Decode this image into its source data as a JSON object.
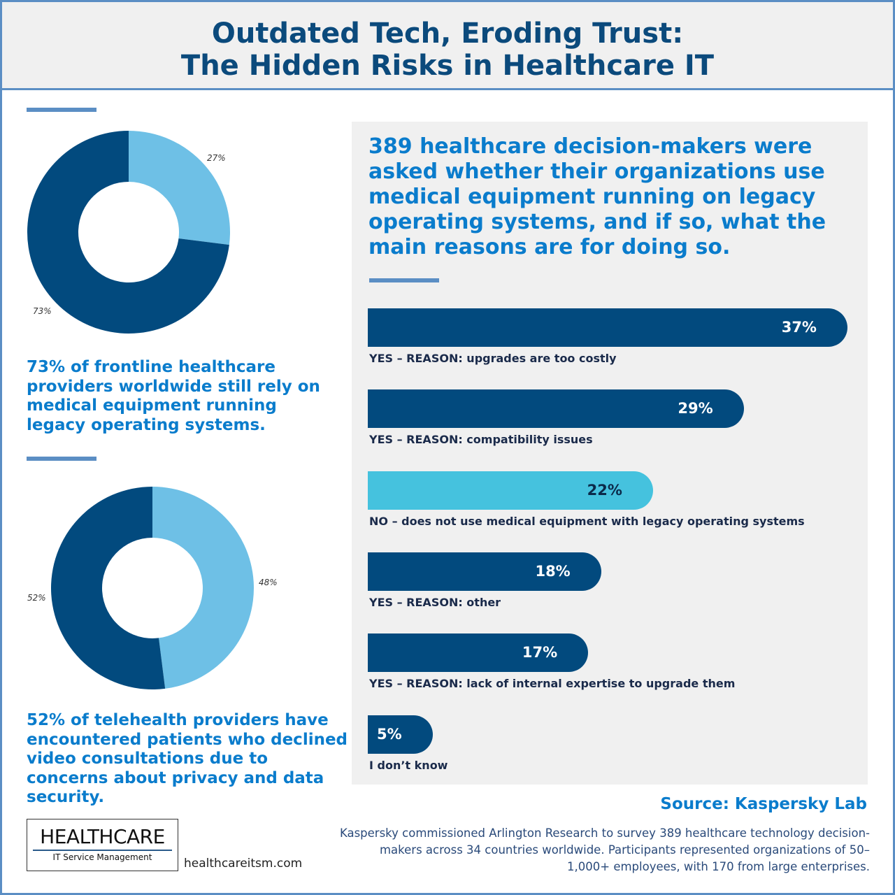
{
  "header": {
    "title_line1": "Outdated Tech, Eroding Trust:",
    "title_line2": "The Hidden Risks in Healthcare IT"
  },
  "colors": {
    "dark": "#024a7e",
    "light": "#6ec0e6",
    "cyan": "#45c2de",
    "accent": "#0a7ccc"
  },
  "chart_data": [
    {
      "type": "pie",
      "donut": true,
      "values": [
        27,
        73
      ],
      "labels": [
        "27%",
        "73%"
      ],
      "colors": [
        "#6ec0e6",
        "#024a7e"
      ]
    },
    {
      "type": "pie",
      "donut": true,
      "values": [
        48,
        52
      ],
      "labels": [
        "48%",
        "52%"
      ],
      "colors": [
        "#6ec0e6",
        "#024a7e"
      ]
    },
    {
      "type": "bar",
      "orientation": "horizontal",
      "title": "389 healthcare decision-makers were asked whether their organizations use medical equipment running on legacy operating systems, and if so, what the main reasons are for doing so.",
      "categories": [
        "YES – REASON: upgrades are too costly",
        "YES – REASON: compatibility issues",
        "NO – does not use medical equipment with legacy operating systems",
        "YES – REASON: other",
        "YES – REASON: lack of internal expertise to upgrade them",
        "I don’t know"
      ],
      "values": [
        37,
        29,
        22,
        18,
        17,
        5
      ],
      "labels": [
        "37%",
        "29%",
        "22%",
        "18%",
        "17%",
        "5%"
      ],
      "colors": [
        "#024a7e",
        "#024a7e",
        "#45c2de",
        "#024a7e",
        "#024a7e",
        "#024a7e"
      ]
    }
  ],
  "stats": {
    "s1": "73% of frontline healthcare providers worldwide still rely on medical equipment running legacy operating systems.",
    "s2": "52% of telehealth providers have encountered patients who declined video consultations due to concerns about privacy and data security."
  },
  "footer": {
    "source": "Source: Kaspersky Lab",
    "note": "Kaspersky commissioned Arlington Research to survey 389 healthcare technology decision-makers across 34 countries worldwide. Participants represented organizations of 50–1,000+ employees, with 170 from large enterprises.",
    "logo_big": "HEALTHCARE",
    "logo_small": "IT Service Management",
    "url": "healthcareitsm.com"
  }
}
